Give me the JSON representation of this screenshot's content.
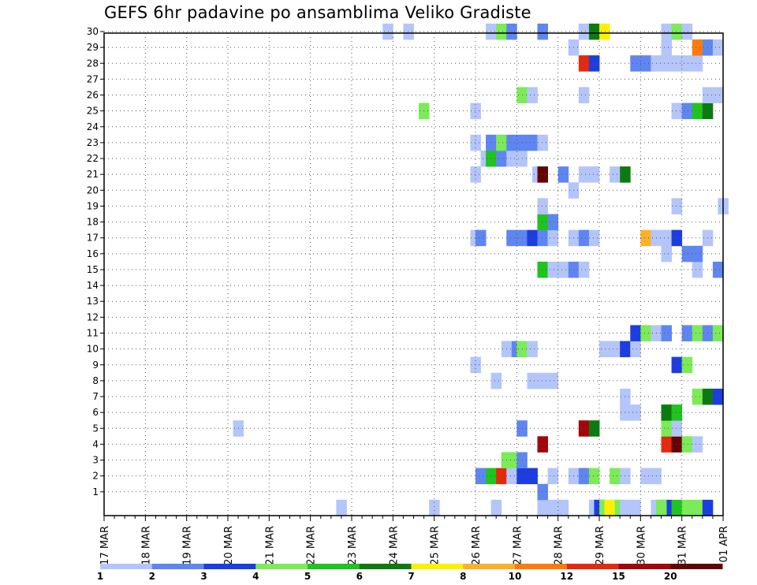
{
  "chart_data": {
    "type": "heatmap",
    "title": "GEFS 6hr padavine po ansamblima Veliko Gradiste",
    "xlabel": "",
    "ylabel": "",
    "y_ticks": [
      1,
      2,
      3,
      4,
      5,
      6,
      7,
      8,
      9,
      10,
      11,
      12,
      13,
      14,
      15,
      16,
      17,
      18,
      19,
      20,
      21,
      22,
      23,
      24,
      25,
      26,
      27,
      28,
      29,
      30
    ],
    "y_range": [
      0,
      30
    ],
    "x_ticks": [
      "17 MAR",
      "18 MAR",
      "19 MAR",
      "20 MAR",
      "21 MAR",
      "22 MAR",
      "23 MAR",
      "24 MAR",
      "25 MAR",
      "26 MAR",
      "27 MAR",
      "28 MAR",
      "29 MAR",
      "30 MAR",
      "31 MAR",
      "01 APR"
    ],
    "x_unit": "6-hour step (4 steps per day, 0 = 17 MAR 00Z)",
    "x_range": [
      0,
      60
    ],
    "grid": true,
    "legend": {
      "position": "bottom",
      "thresholds": [
        "1",
        "2",
        "3",
        "4",
        "5",
        "6",
        "7",
        "8",
        "10",
        "12",
        "15",
        "20"
      ],
      "colors": [
        "#b4c5fa",
        "#5f86f0",
        "#1c3ee0",
        "#7beb58",
        "#1fc41f",
        "#0d7a10",
        "#ffef00",
        "#fbb12b",
        "#ff7a0e",
        "#e4290f",
        "#a2060a",
        "#620404"
      ]
    },
    "cells": [
      [
        0,
        22.5,
        0
      ],
      [
        0,
        31.5,
        0
      ],
      [
        0,
        37.5,
        0
      ],
      [
        0,
        42,
        0
      ],
      [
        0,
        43,
        0
      ],
      [
        0,
        44,
        0
      ],
      [
        0,
        47,
        0
      ],
      [
        0,
        49,
        0
      ],
      [
        0,
        51,
        0
      ],
      [
        0,
        53,
        0
      ],
      [
        0,
        54,
        2
      ],
      [
        0,
        55,
        4
      ],
      [
        0,
        56,
        3
      ],
      [
        0,
        57,
        3
      ],
      [
        0,
        58,
        2
      ],
      [
        0,
        47.5,
        2
      ],
      [
        0,
        48,
        3
      ],
      [
        0,
        48.5,
        6
      ],
      [
        0,
        49.5,
        3
      ],
      [
        0,
        50,
        0
      ],
      [
        0,
        53.5,
        3
      ],
      [
        1,
        42,
        1
      ],
      [
        2,
        36,
        1
      ],
      [
        2,
        37,
        4
      ],
      [
        2,
        38,
        9
      ],
      [
        2,
        39,
        0
      ],
      [
        2,
        40,
        2
      ],
      [
        2,
        41,
        2
      ],
      [
        2,
        43,
        0
      ],
      [
        2,
        45,
        0
      ],
      [
        2,
        46,
        1
      ],
      [
        2,
        47,
        3
      ],
      [
        2,
        49,
        3
      ],
      [
        2,
        50,
        0
      ],
      [
        2,
        52,
        0
      ],
      [
        2,
        53,
        0
      ],
      [
        3,
        38.5,
        3
      ],
      [
        3,
        39.5,
        3
      ],
      [
        3,
        40,
        1
      ],
      [
        4,
        42,
        10
      ],
      [
        4,
        54,
        9
      ],
      [
        4,
        55,
        11
      ],
      [
        4,
        56,
        3
      ],
      [
        4,
        57,
        0
      ],
      [
        5,
        12.5,
        0
      ],
      [
        5,
        40,
        1
      ],
      [
        5,
        46,
        10
      ],
      [
        5,
        47,
        5
      ],
      [
        5,
        54,
        3
      ],
      [
        5,
        55,
        0
      ],
      [
        6,
        50,
        0
      ],
      [
        6,
        51,
        0
      ],
      [
        6,
        54,
        5
      ],
      [
        6,
        55,
        4
      ],
      [
        7,
        50,
        0
      ],
      [
        7,
        57,
        3
      ],
      [
        7,
        58,
        5
      ],
      [
        7,
        59,
        2
      ],
      [
        8,
        37.5,
        0
      ],
      [
        8,
        41,
        0
      ],
      [
        8,
        42,
        0
      ],
      [
        8,
        43,
        0
      ],
      [
        9,
        35.5,
        0
      ],
      [
        9,
        55,
        2
      ],
      [
        9,
        56,
        3
      ],
      [
        10,
        38.5,
        0
      ],
      [
        10,
        39.5,
        1
      ],
      [
        10,
        40,
        3
      ],
      [
        10,
        41,
        0
      ],
      [
        10,
        48,
        0
      ],
      [
        10,
        49,
        0
      ],
      [
        10,
        50,
        2
      ],
      [
        10,
        51,
        0
      ],
      [
        11,
        51,
        2
      ],
      [
        11,
        52,
        3
      ],
      [
        11,
        53,
        0
      ],
      [
        11,
        54,
        1
      ],
      [
        11,
        56,
        1
      ],
      [
        11,
        57,
        3
      ],
      [
        11,
        58,
        1
      ],
      [
        11,
        59,
        3
      ],
      [
        15,
        42,
        4
      ],
      [
        15,
        43,
        0
      ],
      [
        15,
        44,
        0
      ],
      [
        15,
        45,
        1
      ],
      [
        15,
        46,
        0
      ],
      [
        15,
        57,
        0
      ],
      [
        15,
        59,
        1
      ],
      [
        16,
        54,
        0
      ],
      [
        16,
        56,
        1
      ],
      [
        16,
        57,
        1
      ],
      [
        17,
        35.5,
        0
      ],
      [
        17,
        36,
        1
      ],
      [
        17,
        39,
        1
      ],
      [
        17,
        40,
        1
      ],
      [
        17,
        41,
        2
      ],
      [
        17,
        42,
        1
      ],
      [
        17,
        43,
        0
      ],
      [
        17,
        45,
        0
      ],
      [
        17,
        46,
        1
      ],
      [
        17,
        47,
        0
      ],
      [
        17,
        52,
        7
      ],
      [
        17,
        53,
        0
      ],
      [
        17,
        54,
        0
      ],
      [
        17,
        55,
        2
      ],
      [
        17,
        58,
        0
      ],
      [
        18,
        42,
        4
      ],
      [
        18,
        43,
        1
      ],
      [
        19,
        42,
        0
      ],
      [
        19,
        55,
        0
      ],
      [
        19,
        59.5,
        0
      ],
      [
        20,
        45,
        0
      ],
      [
        21,
        35.5,
        0
      ],
      [
        21,
        41.5,
        0
      ],
      [
        21,
        42,
        11
      ],
      [
        21,
        44,
        1
      ],
      [
        21,
        46,
        0
      ],
      [
        21,
        47,
        0
      ],
      [
        21,
        49,
        0
      ],
      [
        21,
        50,
        5
      ],
      [
        22,
        36.5,
        0
      ],
      [
        22,
        37,
        4
      ],
      [
        22,
        38,
        1
      ],
      [
        22,
        39,
        0
      ],
      [
        22,
        40,
        0
      ],
      [
        23,
        35.5,
        0
      ],
      [
        23,
        37,
        1
      ],
      [
        23,
        38,
        3
      ],
      [
        23,
        39,
        1
      ],
      [
        23,
        40,
        1
      ],
      [
        23,
        41,
        1
      ],
      [
        23,
        42,
        0
      ],
      [
        25,
        30.5,
        3
      ],
      [
        25,
        35.5,
        0
      ],
      [
        25,
        55,
        0
      ],
      [
        25,
        56,
        1
      ],
      [
        25,
        57,
        4
      ],
      [
        25,
        58,
        5
      ],
      [
        26,
        40,
        3
      ],
      [
        26,
        41,
        0
      ],
      [
        26,
        46,
        0
      ],
      [
        26,
        58,
        0
      ],
      [
        26,
        59,
        0
      ],
      [
        28,
        46,
        9
      ],
      [
        28,
        47,
        2
      ],
      [
        28,
        51,
        1
      ],
      [
        28,
        52,
        1
      ],
      [
        28,
        53,
        0
      ],
      [
        28,
        54,
        0
      ],
      [
        28,
        55,
        0
      ],
      [
        28,
        56,
        0
      ],
      [
        28,
        57,
        0
      ],
      [
        29,
        45,
        0
      ],
      [
        29,
        54,
        0
      ],
      [
        29,
        57,
        8
      ],
      [
        29,
        58,
        1
      ],
      [
        29,
        59,
        0
      ],
      [
        30,
        27,
        0
      ],
      [
        30,
        29,
        0
      ],
      [
        30,
        37,
        0
      ],
      [
        30,
        38,
        3
      ],
      [
        30,
        39,
        1
      ],
      [
        30,
        42,
        1
      ],
      [
        30,
        46,
        0
      ],
      [
        30,
        47,
        5
      ],
      [
        30,
        48,
        6
      ],
      [
        30,
        54,
        0
      ],
      [
        30,
        55,
        3
      ],
      [
        30,
        56,
        0
      ]
    ]
  }
}
